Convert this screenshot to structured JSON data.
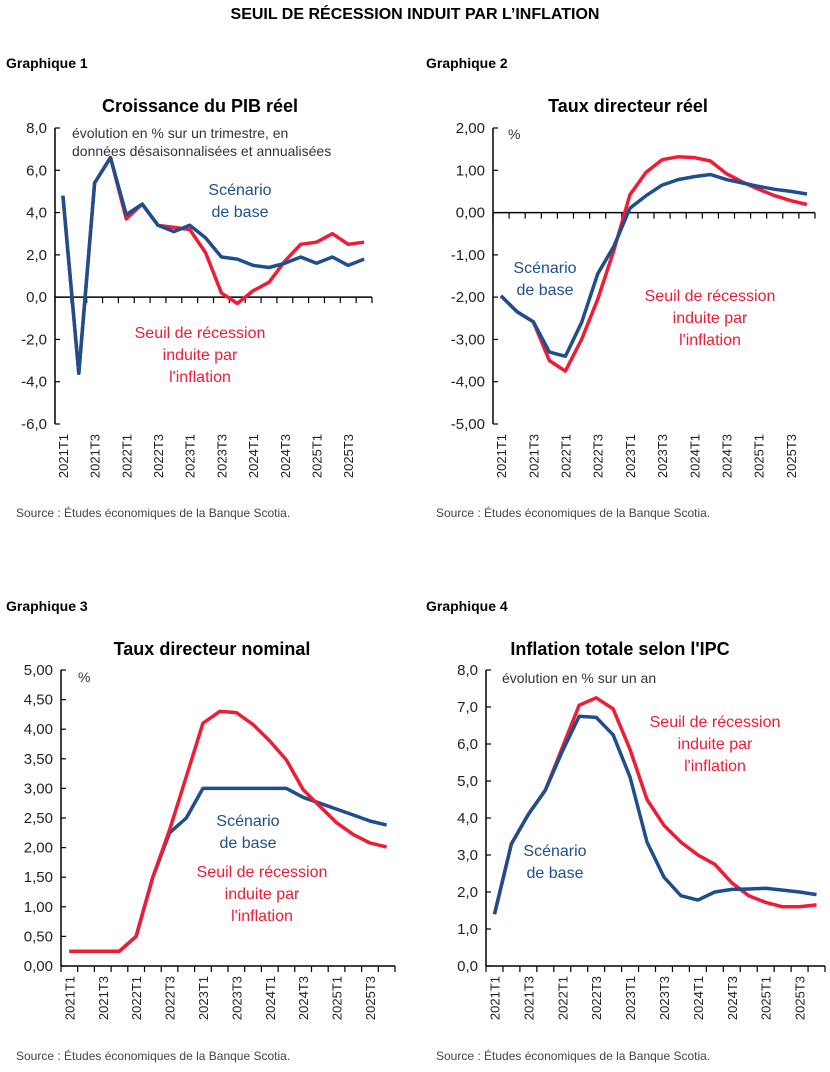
{
  "main_title": "SEUIL DE RÉCESSION INDUIT PAR L’INFLATION",
  "colors": {
    "base": "#1f4e8c",
    "recession": "#ee1c35",
    "axis": "#000000"
  },
  "chart_data": [
    {
      "type": "line",
      "label": "Graphique 1",
      "title": "Croissance du PIB réel",
      "note": [
        "évolution en % sur un trimestre, en",
        "données désaisonnalisées et annualisées"
      ],
      "ylim": [
        -6,
        8
      ],
      "yticks": [
        8,
        6,
        4,
        2,
        0,
        -2,
        -4,
        -6
      ],
      "ytick_labels": [
        "8,0",
        "6,0",
        "4,0",
        "2,0",
        "0,0",
        "-2,0",
        "-4,0",
        "-6,0"
      ],
      "categories": [
        "2021T1",
        "2021T2",
        "2021T3",
        "2021T4",
        "2022T1",
        "2022T2",
        "2022T3",
        "2022T4",
        "2023T1",
        "2023T2",
        "2023T3",
        "2023T4",
        "2024T1",
        "2024T2",
        "2024T3",
        "2024T4",
        "2025T1",
        "2025T2",
        "2025T3",
        "2025T4"
      ],
      "xtick_labels": [
        "2021T1",
        "2021T3",
        "2022T1",
        "2022T3",
        "2023T1",
        "2023T3",
        "2024T1",
        "2024T3",
        "2025T1",
        "2025T3"
      ],
      "series": [
        {
          "name": "Scénario de base",
          "label_lines": [
            "Scénario",
            "de base"
          ],
          "values": [
            4.8,
            -3.6,
            5.4,
            6.6,
            3.9,
            4.4,
            3.4,
            3.1,
            3.4,
            2.8,
            1.9,
            1.8,
            1.5,
            1.4,
            1.6,
            1.9,
            1.6,
            1.9,
            1.5,
            1.8
          ]
        },
        {
          "name": "Seuil de récession induite par l'inflation",
          "label_lines": [
            "Seuil de récession",
            "induite par",
            "l'inflation"
          ],
          "values": [
            4.8,
            -3.6,
            5.4,
            6.6,
            3.7,
            4.4,
            3.4,
            3.3,
            3.2,
            2.1,
            0.2,
            -0.3,
            0.3,
            0.7,
            1.7,
            2.5,
            2.6,
            3.0,
            2.5,
            2.6
          ]
        }
      ],
      "source": "Source : Études économiques de la Banque Scotia."
    },
    {
      "type": "line",
      "label": "Graphique 2",
      "title": "Taux directeur réel",
      "note": [
        "%"
      ],
      "ylim": [
        -5,
        2
      ],
      "yticks": [
        2,
        1,
        0,
        -1,
        -2,
        -3,
        -4,
        -5
      ],
      "ytick_labels": [
        "2,00",
        "1,00",
        "0,00",
        "-1,00",
        "-2,00",
        "-3,00",
        "-4,00",
        "-5,00"
      ],
      "categories": [
        "2021T1",
        "2021T2",
        "2021T3",
        "2021T4",
        "2022T1",
        "2022T2",
        "2022T3",
        "2022T4",
        "2023T1",
        "2023T2",
        "2023T3",
        "2023T4",
        "2024T1",
        "2024T2",
        "2024T3",
        "2024T4",
        "2025T1",
        "2025T2",
        "2025T3",
        "2025T4"
      ],
      "xtick_labels": [
        "2021T1",
        "2021T3",
        "2022T1",
        "2022T3",
        "2023T1",
        "2023T3",
        "2024T1",
        "2024T3",
        "2025T1",
        "2025T3"
      ],
      "series": [
        {
          "name": "Scénario de base",
          "label_lines": [
            "Scénario",
            "de base"
          ],
          "values": [
            -1.97,
            -2.35,
            -2.58,
            -3.3,
            -3.4,
            -2.6,
            -1.45,
            -0.8,
            0.1,
            0.4,
            0.65,
            0.78,
            0.85,
            0.9,
            0.78,
            0.7,
            0.62,
            0.55,
            0.5,
            0.44
          ]
        },
        {
          "name": "Seuil de récession induite par l'inflation",
          "label_lines": [
            "Seuil de récession",
            "induite par",
            "l'inflation"
          ],
          "values": [
            -1.97,
            -2.35,
            -2.58,
            -3.5,
            -3.75,
            -3.0,
            -2.05,
            -0.9,
            0.42,
            0.95,
            1.25,
            1.32,
            1.3,
            1.22,
            0.92,
            0.72,
            0.55,
            0.4,
            0.28,
            0.19
          ]
        }
      ],
      "source": "Source : Études économiques de la Banque Scotia."
    },
    {
      "type": "line",
      "label": "Graphique 3",
      "title": "Taux directeur nominal",
      "note": [
        "%"
      ],
      "ylim": [
        0,
        5
      ],
      "yticks": [
        5,
        4.5,
        4,
        3.5,
        3,
        2.5,
        2,
        1.5,
        1,
        0.5,
        0
      ],
      "ytick_labels": [
        "5,00",
        "4,50",
        "4,00",
        "3,50",
        "3,00",
        "2,50",
        "2,00",
        "1,50",
        "1,00",
        "0,50",
        "0,00"
      ],
      "categories": [
        "2021T1",
        "2021T2",
        "2021T3",
        "2021T4",
        "2022T1",
        "2022T2",
        "2022T3",
        "2022T4",
        "2023T1",
        "2023T2",
        "2023T3",
        "2023T4",
        "2024T1",
        "2024T2",
        "2024T3",
        "2024T4",
        "2025T1",
        "2025T2",
        "2025T3",
        "2025T4"
      ],
      "xtick_labels": [
        "2021T1",
        "2021T3",
        "2022T1",
        "2022T3",
        "2023T1",
        "2023T3",
        "2024T1",
        "2024T3",
        "2025T1",
        "2025T3"
      ],
      "series": [
        {
          "name": "Scénario de base",
          "label_lines": [
            "Scénario",
            "de base"
          ],
          "values": [
            0.25,
            0.25,
            0.25,
            0.25,
            0.5,
            1.5,
            2.25,
            2.5,
            3,
            3,
            3,
            3,
            3,
            3,
            2.85,
            2.75,
            2.65,
            2.55,
            2.45,
            2.38
          ]
        },
        {
          "name": "Seuil de récession induite par l'inflation",
          "label_lines": [
            "Seuil de récession",
            "induite par",
            "l'inflation"
          ],
          "values": [
            0.25,
            0.25,
            0.25,
            0.25,
            0.5,
            1.5,
            2.3,
            3.2,
            4.1,
            4.3,
            4.28,
            4.08,
            3.8,
            3.48,
            2.98,
            2.7,
            2.42,
            2.22,
            2.08,
            2.01
          ]
        }
      ],
      "source": "Source : Études économiques de la Banque Scotia."
    },
    {
      "type": "line",
      "label": "Graphique 4",
      "title": "Inflation totale selon l'IPC",
      "note": [
        "évolution en % sur un an"
      ],
      "ylim": [
        0,
        8
      ],
      "yticks": [
        8,
        7,
        6,
        5,
        4,
        3,
        2,
        1,
        0
      ],
      "ytick_labels": [
        "8,0",
        "7,0",
        "6,0",
        "5,0",
        "4,0",
        "3,0",
        "2,0",
        "1,0",
        "0,0"
      ],
      "categories": [
        "2021T1",
        "2021T2",
        "2021T3",
        "2021T4",
        "2022T1",
        "2022T2",
        "2022T3",
        "2022T4",
        "2023T1",
        "2023T2",
        "2023T3",
        "2023T4",
        "2024T1",
        "2024T2",
        "2024T3",
        "2024T4",
        "2025T1",
        "2025T2",
        "2025T3",
        "2025T4"
      ],
      "xtick_labels": [
        "2021T1",
        "2021T3",
        "2022T1",
        "2022T3",
        "2023T1",
        "2023T3",
        "2024T1",
        "2024T3",
        "2025T1",
        "2025T3"
      ],
      "series": [
        {
          "name": "Scénario de base",
          "label_lines": [
            "Scénario",
            "de base"
          ],
          "values": [
            1.4,
            3.3,
            4.1,
            4.75,
            5.8,
            6.75,
            6.72,
            6.25,
            5.1,
            3.35,
            2.4,
            1.9,
            1.78,
            2.0,
            2.07,
            2.08,
            2.1,
            2.05,
            2.0,
            1.93
          ]
        },
        {
          "name": "Seuil de récession induite par l'inflation",
          "label_lines": [
            "Seuil de récession",
            "induite par",
            "l'inflation"
          ],
          "values": [
            1.4,
            3.3,
            4.1,
            4.75,
            5.9,
            7.05,
            7.25,
            6.95,
            5.85,
            4.5,
            3.8,
            3.35,
            3.0,
            2.75,
            2.25,
            1.9,
            1.72,
            1.6,
            1.6,
            1.65
          ]
        }
      ],
      "source": "Source : Études économiques de la Banque Scotia."
    }
  ]
}
